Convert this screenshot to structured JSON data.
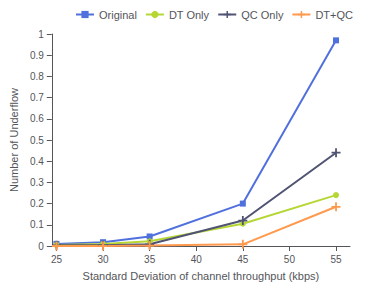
{
  "chart_data": {
    "type": "line",
    "xlabel": "Standard Deviation of channel throughput (kbps)",
    "ylabel": "Number of Underflow",
    "x": [
      25,
      30,
      35,
      45,
      55
    ],
    "series": [
      {
        "name": "Original",
        "values": [
          0.01,
          0.018,
          0.045,
          0.2,
          0.97
        ],
        "marker": "square"
      },
      {
        "name": "DT Only",
        "values": [
          0.005,
          0.01,
          0.022,
          0.105,
          0.24
        ],
        "marker": "circle"
      },
      {
        "name": "QC Only",
        "values": [
          0.003,
          0.004,
          0.008,
          0.12,
          0.44
        ],
        "marker": "plus"
      },
      {
        "name": "DT+QC",
        "values": [
          0.0,
          0.0,
          0.002,
          0.008,
          0.185
        ],
        "marker": "plus"
      }
    ],
    "xlim": [
      24.5,
      56.5
    ],
    "ylim": [
      0,
      1.0
    ],
    "xticks": [
      25,
      30,
      35,
      40,
      45,
      50,
      55
    ],
    "yticks": [
      0,
      0.1,
      0.2,
      0.3,
      0.4,
      0.5,
      0.6,
      0.7,
      0.8,
      0.9,
      1
    ],
    "grid": false,
    "legend": "upper right"
  }
}
